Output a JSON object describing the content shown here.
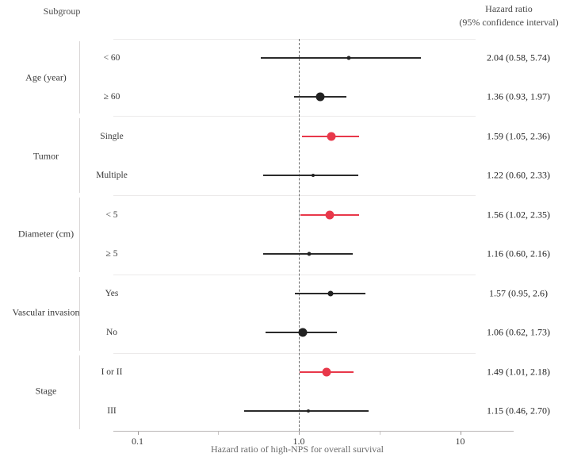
{
  "header": {
    "subgroup": "Subgroup",
    "hazard_ratio_line1": "Hazard ratio",
    "hazard_ratio_line2": "(95% confidence interval)"
  },
  "colors": {
    "red": "#e8384a",
    "black": "#212121",
    "ci_black": "#2b2b2b"
  },
  "chart_data": {
    "type": "forest",
    "xlabel": "Hazard ratio of high-NPS for overall survival",
    "x_scale": "log10",
    "xlim": [
      0.1,
      10
    ],
    "reference_line": 1.0,
    "ticks": [
      {
        "label": "0.1",
        "value": 0.1,
        "minor": false
      },
      {
        "label": "",
        "value": 0.3162,
        "minor": true
      },
      {
        "label": "1.0",
        "value": 1.0,
        "minor": false
      },
      {
        "label": "",
        "value": 3.162,
        "minor": true
      },
      {
        "label": "10",
        "value": 10,
        "minor": false
      }
    ],
    "groups": [
      {
        "label": "Age (year)",
        "rows": [
          {
            "label": "< 60",
            "hr": 2.04,
            "lo": 0.58,
            "hi": 5.74,
            "text": "2.04 (0.58, 5.74)",
            "color": "black",
            "marker": "small"
          },
          {
            "label": "≥ 60",
            "hr": 1.36,
            "lo": 0.93,
            "hi": 1.97,
            "text": "1.36 (0.93, 1.97)",
            "color": "black",
            "marker": "large"
          }
        ]
      },
      {
        "label": "Tumor",
        "rows": [
          {
            "label": "Single",
            "hr": 1.59,
            "lo": 1.05,
            "hi": 2.36,
            "text": "1.59 (1.05, 2.36)",
            "color": "red",
            "marker": "large"
          },
          {
            "label": "Multiple",
            "hr": 1.22,
            "lo": 0.6,
            "hi": 2.33,
            "text": "1.22 (0.60, 2.33)",
            "color": "black",
            "marker": "tiny"
          }
        ]
      },
      {
        "label": "Diameter (cm)",
        "rows": [
          {
            "label": "< 5",
            "hr": 1.56,
            "lo": 1.02,
            "hi": 2.35,
            "text": "1.56 (1.02, 2.35)",
            "color": "red",
            "marker": "large"
          },
          {
            "label": "≥ 5",
            "hr": 1.16,
            "lo": 0.6,
            "hi": 2.16,
            "text": "1.16 (0.60, 2.16)",
            "color": "black",
            "marker": "small"
          }
        ]
      },
      {
        "label": "Vascular invasion",
        "rows": [
          {
            "label": "Yes",
            "hr": 1.57,
            "lo": 0.95,
            "hi": 2.6,
            "text": "1.57 (0.95, 2.6)",
            "color": "black",
            "marker": "medium"
          },
          {
            "label": "No",
            "hr": 1.06,
            "lo": 0.62,
            "hi": 1.73,
            "text": "1.06 (0.62, 1.73)",
            "color": "black",
            "marker": "large"
          }
        ]
      },
      {
        "label": "Stage",
        "rows": [
          {
            "label": "I or II",
            "hr": 1.49,
            "lo": 1.01,
            "hi": 2.18,
            "text": "1.49 (1.01, 2.18)",
            "color": "red",
            "marker": "large"
          },
          {
            "label": "III",
            "hr": 1.15,
            "lo": 0.46,
            "hi": 2.7,
            "text": "1.15 (0.46, 2.70)",
            "color": "black",
            "marker": "tiny"
          }
        ]
      }
    ]
  }
}
